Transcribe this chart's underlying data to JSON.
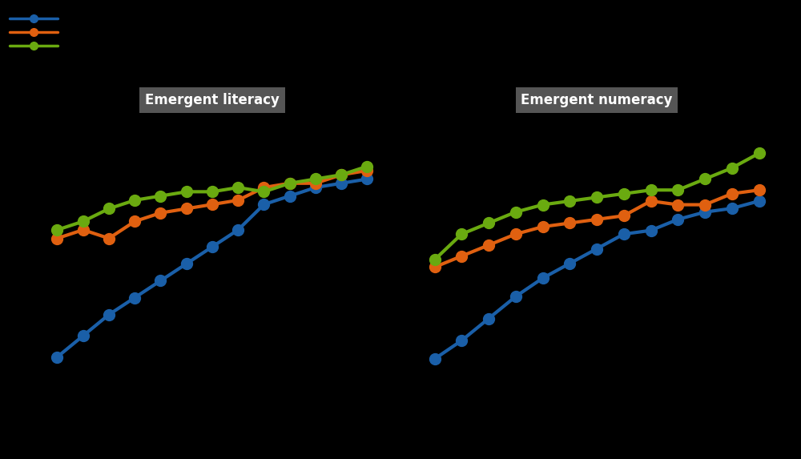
{
  "background_color": "#000000",
  "panel_color": "#000000",
  "title_literacy": "Emergent literacy",
  "title_numeracy": "Emergent numeracy",
  "title_box_color": "#555555",
  "title_text_color": "#ffffff",
  "colors": {
    "blue": "#1a5fa8",
    "orange": "#e06010",
    "green": "#6aaa10"
  },
  "literacy": {
    "x": [
      36,
      39,
      42,
      45,
      48,
      51,
      54,
      57,
      60,
      63,
      66,
      69,
      72
    ],
    "blue": [
      0.2,
      0.25,
      0.3,
      0.34,
      0.38,
      0.42,
      0.46,
      0.5,
      0.56,
      0.58,
      0.6,
      0.61,
      0.62
    ],
    "orange": [
      0.48,
      0.5,
      0.48,
      0.52,
      0.54,
      0.55,
      0.56,
      0.57,
      0.6,
      0.61,
      0.61,
      0.63,
      0.64
    ],
    "green": [
      0.5,
      0.52,
      0.55,
      0.57,
      0.58,
      0.59,
      0.59,
      0.6,
      0.59,
      0.61,
      0.62,
      0.63,
      0.65
    ]
  },
  "numeracy": {
    "x": [
      36,
      39,
      42,
      45,
      48,
      51,
      54,
      57,
      60,
      63,
      66,
      69,
      72
    ],
    "blue": [
      0.16,
      0.21,
      0.27,
      0.33,
      0.38,
      0.42,
      0.46,
      0.5,
      0.51,
      0.54,
      0.56,
      0.57,
      0.59
    ],
    "orange": [
      0.41,
      0.44,
      0.47,
      0.5,
      0.52,
      0.53,
      0.54,
      0.55,
      0.59,
      0.58,
      0.58,
      0.61,
      0.62
    ],
    "green": [
      0.43,
      0.5,
      0.53,
      0.56,
      0.58,
      0.59,
      0.6,
      0.61,
      0.62,
      0.62,
      0.65,
      0.68,
      0.72
    ]
  },
  "line_width": 3.0,
  "marker_size": 10
}
